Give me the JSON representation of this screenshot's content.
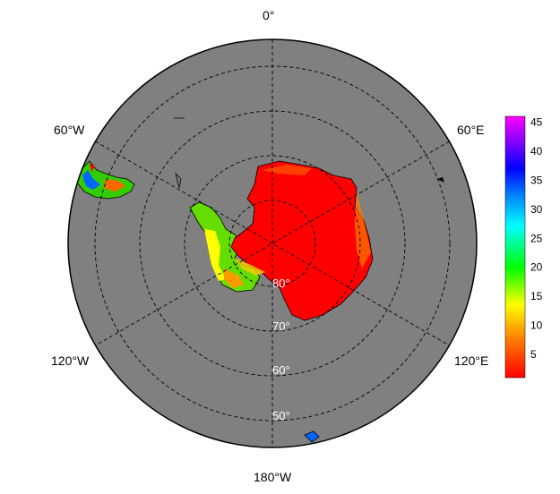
{
  "map": {
    "projection": "south-polar-stereographic",
    "ocean_color": "#808080",
    "graticule": {
      "style": "dashed",
      "latitudes": [
        50,
        60,
        70,
        80
      ],
      "longitudes": [
        0,
        60,
        120,
        180,
        -120,
        -60
      ]
    },
    "longitude_labels": {
      "top": "0°",
      "upper_left": "60°W",
      "upper_right": "60°E",
      "lower_left": "120°W",
      "lower_right": "120°E",
      "bottom": "180°W"
    },
    "latitude_labels": {
      "lat80": "80°",
      "lat70": "70°",
      "lat60": "60°",
      "lat50": "50°"
    }
  },
  "colorbar": {
    "min": 1,
    "max": 46,
    "ticks": [
      "5",
      "10",
      "15",
      "20",
      "25",
      "30",
      "35",
      "40",
      "45"
    ],
    "tick_values": [
      5,
      10,
      15,
      20,
      25,
      30,
      35,
      40,
      45
    ],
    "colors": [
      "#ff0000",
      "#ff8000",
      "#ffff00",
      "#00ff00",
      "#00ffff",
      "#0080ff",
      "#0000ff",
      "#8000ff",
      "#ff00ff"
    ]
  }
}
